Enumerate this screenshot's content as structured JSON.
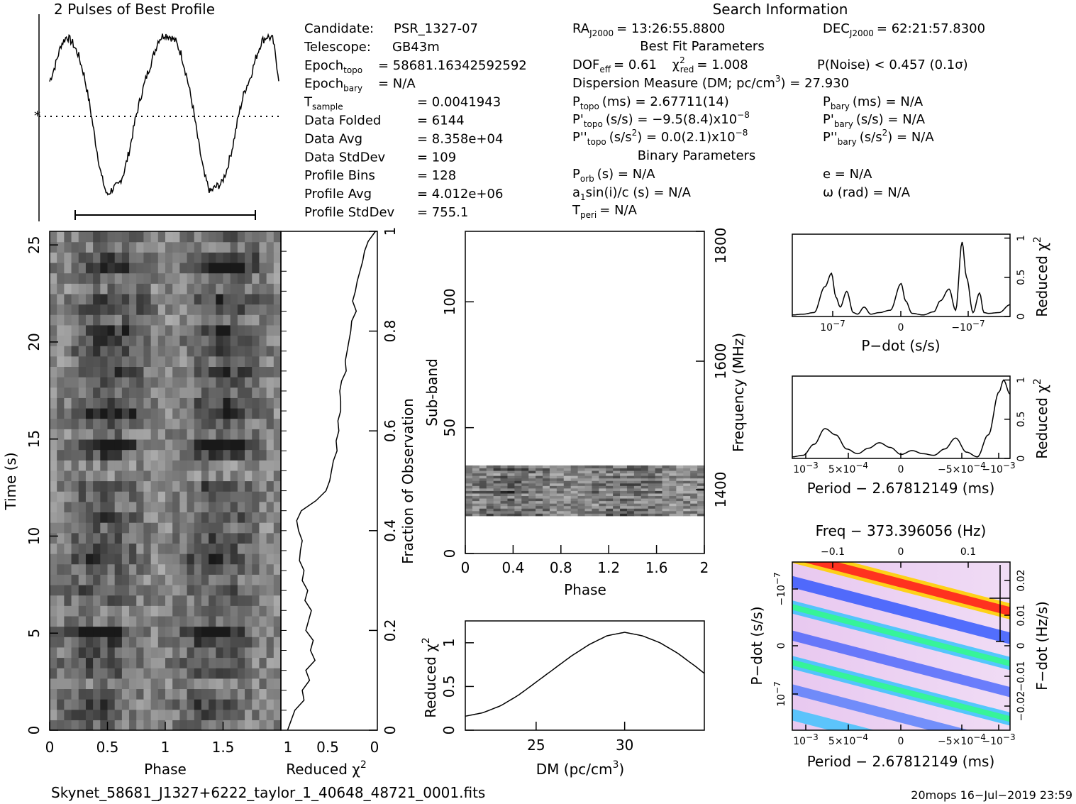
{
  "profile": {
    "title": "2 Pulses of Best Profile"
  },
  "info_left": [
    {
      "label": "Candidate:",
      "value": "PSR_1327-07"
    },
    {
      "label": "Telescope:",
      "value": "GB43m"
    },
    {
      "label": "Epoch",
      "sub": "topo",
      "value": "= 58681.16342592592"
    },
    {
      "label": "Epoch",
      "sub": "bary",
      "value": "= N/A"
    },
    {
      "label": "T",
      "sub": "sample",
      "value": "=   0.0041943"
    },
    {
      "label": "Data Folded",
      "value": "=   6144"
    },
    {
      "label": "Data Avg",
      "value": "=   8.358e+04"
    },
    {
      "label": "Data StdDev",
      "value": "=   109"
    },
    {
      "label": "Profile Bins",
      "value": "=   128"
    },
    {
      "label": "Profile Avg",
      "value": "=   4.012e+06"
    },
    {
      "label": "Profile StdDev",
      "value": "=   755.1"
    }
  ],
  "search_info": {
    "header": "Search Information",
    "ra": "RA",
    "ra_sub": "J2000",
    "ra_value": "= 13:26:55.8800",
    "dec": "DEC",
    "dec_sub": "J2000",
    "dec_value": "= 62:21:57.8300",
    "best_fit_header": "Best Fit Parameters",
    "dof": "DOF",
    "dof_sub": "eff",
    "dof_value": "= 0.61",
    "chi": "χ",
    "chi_sup": "2",
    "chi_sub": "red",
    "chi_value": "= 1.008",
    "pnoise": "P(Noise) < 0.457   (0.1σ)",
    "dm_line": "Dispersion Measure (DM; pc/cm",
    "dm_sup": "3",
    "dm_value": ") = 27.930",
    "ptopo": "P",
    "ptopo_sub": "topo",
    "ptopo_value": "(ms) =  2.67711(14)",
    "pbary": "P",
    "pbary_sub": "bary",
    "pbary_value": "(ms) = N/A",
    "pdtopo": "P'",
    "pdtopo_sub": "topo",
    "pdtopo_value": "(s/s) = −9.5(8.4)x10",
    "pdtopo_sup": "−8",
    "pdbary": "P'",
    "pdbary_sub": "bary",
    "pdbary_value": "(s/s) = N/A",
    "pddtopo": "P''",
    "pddtopo_sub": "topo",
    "pddtopo_value": "(s/s",
    "pddtopo_sup1": "2",
    "pddtopo_value2": ") = 0.0(2.1)x10",
    "pddtopo_sup2": "−8",
    "pddbary": "P''",
    "pddbary_sub": "bary",
    "pddbary_value": "(s/s",
    "pddbary_sup": "2",
    "pddbary_value2": ") = N/A",
    "binary_header": "Binary Parameters",
    "porb": "P",
    "porb_sub": "orb",
    "porb_value": "(s) = N/A",
    "e_value": "e = N/A",
    "a1": "a",
    "a1_sub": "1",
    "a1_value": "sin(i)/c (s) = N/A",
    "omega_value": "ω (rad) = N/A",
    "tperi": "T",
    "tperi_sub": "peri",
    "tperi_value": "= N/A"
  },
  "footer": {
    "filename": "Skynet_58681_J1327+6222_taylor_1_40648_48721_0001.fits",
    "stamp": "20mops  16−Jul−2019 23:59"
  },
  "chart_data": [
    {
      "type": "line",
      "id": "profile",
      "title": "2 Pulses of Best Profile",
      "x": [
        0,
        0.05,
        0.1,
        0.15,
        0.2,
        0.25,
        0.3,
        0.35,
        0.4,
        0.45,
        0.5,
        0.55,
        0.6,
        0.65,
        0.7,
        0.75,
        0.8,
        0.85,
        0.9,
        0.95,
        1.0,
        1.05,
        1.1,
        1.15,
        1.2,
        1.25,
        1.3,
        1.35,
        1.4,
        1.45,
        1.5,
        1.55,
        1.6,
        1.65,
        1.7,
        1.75,
        1.8,
        1.85,
        1.9,
        1.95,
        2.0
      ],
      "y": [
        0.7,
        0.8,
        0.92,
        0.97,
        0.93,
        0.86,
        0.74,
        0.56,
        0.34,
        0.14,
        0.02,
        0.06,
        0.08,
        0.16,
        0.3,
        0.48,
        0.62,
        0.74,
        0.84,
        0.95,
        0.98,
        0.97,
        0.94,
        0.86,
        0.72,
        0.55,
        0.33,
        0.14,
        0.04,
        0.07,
        0.09,
        0.18,
        0.32,
        0.5,
        0.64,
        0.72,
        0.84,
        0.94,
        0.97,
        0.95,
        0.72
      ],
      "ylim": [
        0,
        1
      ],
      "xlim": [
        0,
        2
      ]
    },
    {
      "type": "heatmap",
      "id": "time-phase",
      "xlabel": "Phase",
      "ylabel": "Time (s)",
      "xticks": [
        "0",
        "0.5",
        "1",
        "1.5"
      ],
      "yticks": [
        "0",
        "5",
        "10",
        "15",
        "20",
        "25"
      ]
    },
    {
      "type": "line",
      "id": "chi-vs-time",
      "xlabel": "Reduced χ",
      "xlabel_sup": "2",
      "ylabel": "Fraction of Observation",
      "xticks": [
        "1",
        "0.5",
        "0"
      ],
      "yticks": [
        "0",
        "0.2",
        "0.4",
        "0.6",
        "0.8",
        "1"
      ],
      "x": [
        0.0,
        0.04,
        0.06,
        0.08,
        0.1,
        0.12,
        0.14,
        0.16,
        0.18,
        0.2,
        0.22,
        0.24,
        0.26,
        0.28,
        0.3,
        0.32,
        0.34,
        0.36,
        0.38,
        0.4,
        0.42,
        0.44,
        0.46,
        0.48,
        0.5,
        0.52,
        0.54,
        0.56,
        0.58,
        0.6,
        0.62,
        0.64,
        0.66,
        0.68,
        0.7,
        0.72,
        0.74,
        0.76,
        0.78,
        0.8,
        0.82,
        0.84,
        0.86,
        0.88,
        0.9,
        0.92,
        0.94,
        0.96,
        0.98,
        1.0
      ],
      "y": [
        0.02,
        0.1,
        0.2,
        0.18,
        0.26,
        0.22,
        0.32,
        0.27,
        0.3,
        0.22,
        0.25,
        0.28,
        0.21,
        0.24,
        0.18,
        0.2,
        0.15,
        0.16,
        0.18,
        0.14,
        0.12,
        0.17,
        0.33,
        0.44,
        0.48,
        0.5,
        0.52,
        0.56,
        0.55,
        0.58,
        0.57,
        0.6,
        0.6,
        0.59,
        0.61,
        0.66,
        0.65,
        0.67,
        0.69,
        0.71,
        0.72,
        0.77,
        0.73,
        0.76,
        0.78,
        0.81,
        0.84,
        0.86,
        0.9,
        0.98
      ]
    },
    {
      "type": "heatmap",
      "id": "subband-phase",
      "xlabel": "Phase",
      "ylabel": "Sub-band",
      "ylabel_right": "Frequency (MHz)",
      "xticks": [
        "0",
        "0.4",
        "0.8",
        "1.2",
        "1.6",
        "2"
      ],
      "yticks": [
        "0",
        "50",
        "100"
      ],
      "yticks_right": [
        "1400",
        "1600",
        "1800"
      ],
      "band_range": [
        15,
        35
      ],
      "ylim": [
        0,
        128
      ]
    },
    {
      "type": "line",
      "id": "dm-curve",
      "xlabel": "DM (pc/cm",
      "xlabel_sup": "3",
      "ylabel": "Reduced χ",
      "ylabel_sup": "2",
      "xticks": [
        "25",
        "30"
      ],
      "yticks": [
        "0",
        "0.5",
        "1"
      ],
      "x": [
        21,
        22,
        23,
        24,
        25,
        26,
        27,
        28,
        29,
        30,
        31,
        32,
        33,
        34,
        34.5
      ],
      "y": [
        0.16,
        0.2,
        0.28,
        0.4,
        0.55,
        0.7,
        0.85,
        0.98,
        1.08,
        1.12,
        1.08,
        1.0,
        0.88,
        0.73,
        0.65
      ],
      "xlim": [
        21,
        34.5
      ],
      "ylim": [
        0,
        1.25
      ]
    },
    {
      "type": "line",
      "id": "pdot-curve",
      "xlabel": "P−dot (s/s)",
      "ylabel": "Reduced χ",
      "ylabel_sup": "2",
      "xticks": [
        "10",
        "0",
        "−10"
      ],
      "xtick_sup": "−7",
      "yticks": [
        "0",
        "0.5",
        "1"
      ],
      "x": [
        0,
        0.05,
        0.1,
        0.15,
        0.18,
        0.2,
        0.22,
        0.25,
        0.28,
        0.3,
        0.33,
        0.36,
        0.4,
        0.45,
        0.5,
        0.52,
        0.55,
        0.6,
        0.65,
        0.68,
        0.72,
        0.75,
        0.78,
        0.8,
        0.83,
        0.86,
        0.88,
        0.9,
        0.95,
        1.0
      ],
      "y": [
        0.02,
        0.03,
        0.05,
        0.38,
        0.55,
        0.25,
        0.12,
        0.32,
        0.05,
        0.03,
        0.12,
        0.03,
        0.05,
        0.08,
        0.42,
        0.2,
        0.04,
        0.02,
        0.06,
        0.2,
        0.35,
        0.08,
        0.95,
        0.5,
        0.05,
        0.3,
        0.05,
        0.04,
        0.05,
        0.15
      ],
      "ylim": [
        0,
        1.05
      ]
    },
    {
      "type": "line",
      "id": "period-curve",
      "xlabel": "Period − 2.67812149 (ms)",
      "ylabel": "Reduced χ",
      "ylabel_sup": "2",
      "xticks": [
        "10",
        "5×10",
        "0",
        "−5×10",
        "−10"
      ],
      "yticks": [
        "0",
        "0.5",
        "1"
      ],
      "x": [
        0,
        0.05,
        0.1,
        0.15,
        0.2,
        0.25,
        0.3,
        0.35,
        0.4,
        0.45,
        0.5,
        0.55,
        0.6,
        0.65,
        0.7,
        0.75,
        0.8,
        0.85,
        0.9,
        0.95,
        0.97,
        1.0
      ],
      "y": [
        0.02,
        0.04,
        0.18,
        0.38,
        0.3,
        0.12,
        0.06,
        0.13,
        0.2,
        0.14,
        0.05,
        0.1,
        0.06,
        0.04,
        0.12,
        0.26,
        0.08,
        0.02,
        0.3,
        0.85,
        1.0,
        0.82
      ],
      "ylim": [
        0,
        1.05
      ]
    },
    {
      "type": "heatmap",
      "id": "ppdot-plane",
      "title": "Freq − 373.396056 (Hz)",
      "xlabel": "Period − 2.67812149 (ms)",
      "ylabel": "P−dot (s/s)",
      "ylabel_right": "F−dot (Hz/s)",
      "xticks_top": [
        "−0.1",
        "0",
        "0.1"
      ],
      "xticks": [
        "10",
        "5×10",
        "0",
        "−5×10",
        "−10"
      ],
      "yticks_right": [
        "−0.02",
        "−0.01",
        "0",
        "0.01",
        "0.02"
      ],
      "yticks": [
        "10",
        "0",
        "−10"
      ]
    }
  ]
}
